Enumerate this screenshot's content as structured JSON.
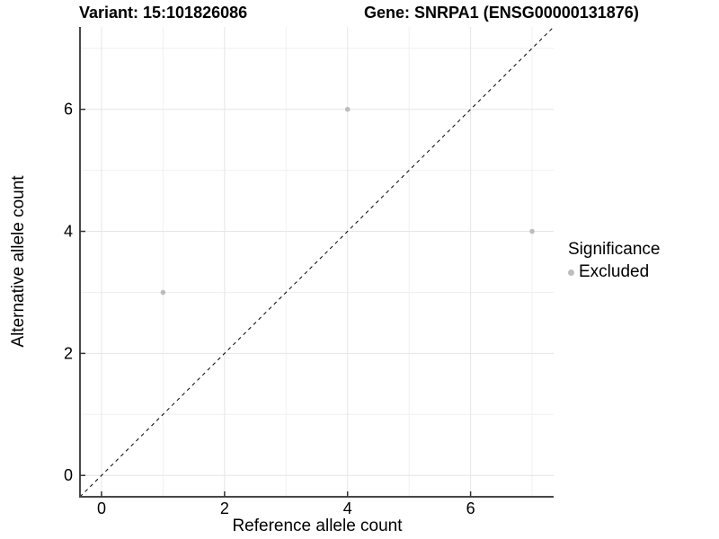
{
  "chart_data": {
    "type": "scatter",
    "titles": {
      "variant": "Variant: 15:101826086",
      "gene": "Gene: SNRPA1 (ENSG00000131876)"
    },
    "xlabel": "Reference allele count",
    "ylabel": "Alternative allele count",
    "xlim": [
      -0.35,
      7.35
    ],
    "ylim": [
      -0.35,
      7.35
    ],
    "x_major_ticks": [
      0,
      2,
      4,
      6
    ],
    "y_major_ticks": [
      0,
      2,
      4,
      6
    ],
    "x_minor_gridlines": [
      1,
      3,
      5,
      7
    ],
    "y_minor_gridlines": [
      1,
      3,
      5,
      7
    ],
    "grid": true,
    "identity_line": {
      "style": "dashed",
      "from": [
        -0.35,
        -0.35
      ],
      "to": [
        7.35,
        7.35
      ],
      "color": "#000000"
    },
    "series": [
      {
        "name": "Excluded",
        "color": "#bdbdbd",
        "points": [
          {
            "x": 1,
            "y": 3
          },
          {
            "x": 4,
            "y": 6
          },
          {
            "x": 7,
            "y": 4
          }
        ]
      }
    ],
    "legend": {
      "title": "Significance",
      "position": "right",
      "items": [
        {
          "label": "Excluded",
          "color": "#bdbdbd"
        }
      ]
    },
    "colors": {
      "background": "#ffffff",
      "grid_major": "#e6e6e6",
      "grid_minor": "#f0f0f0",
      "axis_line": "#474747",
      "tick_mark": "#333333",
      "text": "#000000",
      "point": "#bdbdbd"
    }
  }
}
